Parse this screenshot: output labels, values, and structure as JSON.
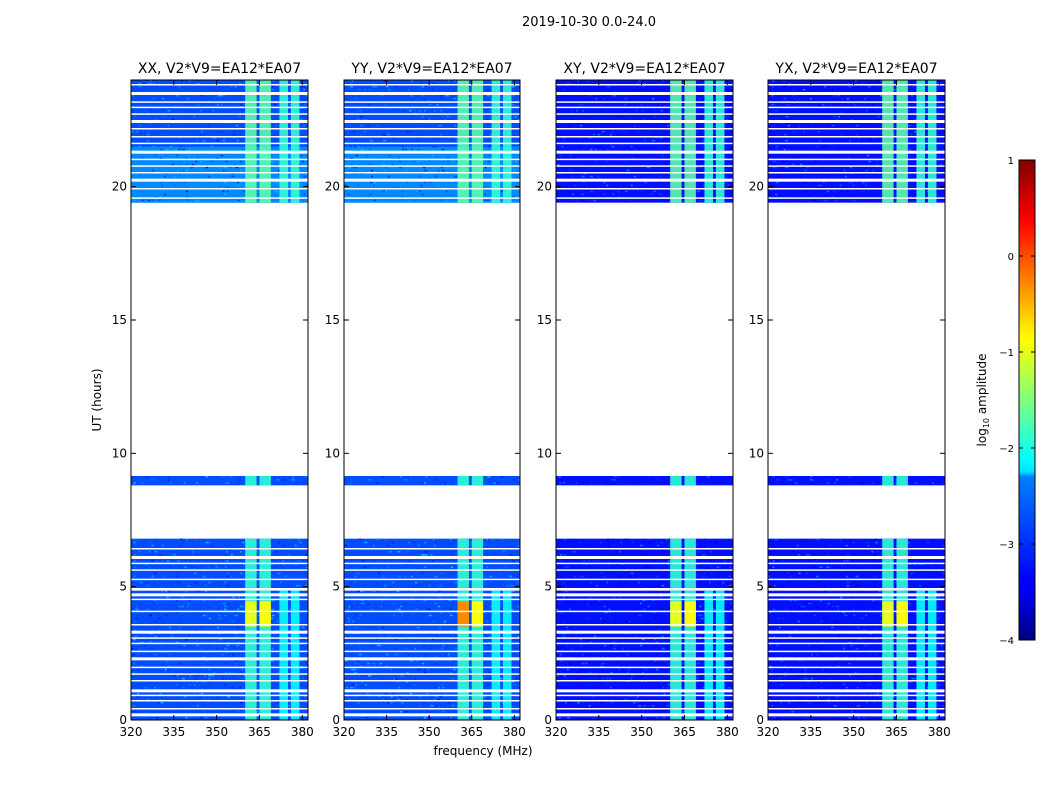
{
  "chart_data": {
    "type": "heatmap",
    "suptitle": "2019-10-30 0.0-24.0",
    "xlabel": "frequency (MHz)",
    "ylabel": "UT (hours)",
    "xlim": [
      320,
      382
    ],
    "ylim": [
      0,
      24
    ],
    "xticks": [
      320,
      335,
      350,
      365,
      380
    ],
    "yticks": [
      0,
      5,
      10,
      15,
      20
    ],
    "panels": [
      {
        "title": "XX, V2*V9=EA12*EA07",
        "pol": "XX"
      },
      {
        "title": "YY, V2*V9=EA12*EA07",
        "pol": "YY"
      },
      {
        "title": "XY, V2*V9=EA12*EA07",
        "pol": "XY"
      },
      {
        "title": "YX, V2*V9=EA12*EA07",
        "pol": "YX"
      }
    ],
    "data_time_ranges_hours": [
      [
        0.0,
        4.85
      ],
      [
        4.95,
        6.8
      ],
      [
        8.8,
        9.15
      ],
      [
        19.4,
        24.0
      ]
    ],
    "high_amplitude_bands_mhz": [
      [
        360,
        364
      ],
      [
        365,
        369
      ],
      [
        372,
        375
      ],
      [
        376,
        379
      ]
    ],
    "colorbar": {
      "label": "log$_{10}$ amplitude",
      "label_main": "log",
      "label_sub": "10",
      "label_rest": " amplitude",
      "range": [
        -4,
        1
      ],
      "ticks": [
        1,
        0,
        -1,
        -2,
        -3,
        -4
      ],
      "tick_labels": [
        "1",
        "0",
        "−1",
        "−2",
        "−3",
        "−4"
      ],
      "colormap": "jet"
    }
  }
}
